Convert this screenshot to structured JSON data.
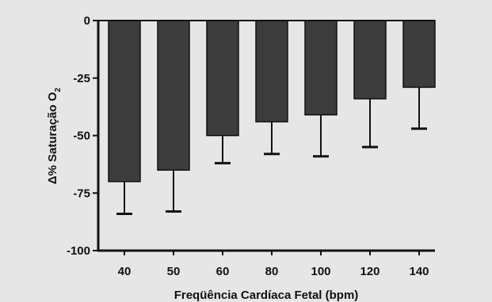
{
  "chart_data": {
    "type": "bar",
    "title": "",
    "xlabel": "Freqüência Cardíaca Fetal (bpm)",
    "ylabel": {
      "prefix": "Δ% Saturação O",
      "subscript": "2"
    },
    "categories": [
      "40",
      "50",
      "60",
      "80",
      "100",
      "120",
      "140"
    ],
    "values": [
      -70,
      -65,
      -50,
      -44,
      -41,
      -34,
      -29
    ],
    "error": [
      14,
      18,
      12,
      14,
      18,
      21,
      18
    ],
    "ylim": [
      -100,
      0
    ],
    "yticks": [
      0,
      -25,
      -50,
      -75,
      -100
    ],
    "ytick_labels": [
      "0",
      "-25",
      "-50",
      "-75",
      "-100"
    ],
    "grid": false,
    "legend": "none",
    "bar_color": "#3c3c3c",
    "background_color": "#e6e6e6"
  }
}
